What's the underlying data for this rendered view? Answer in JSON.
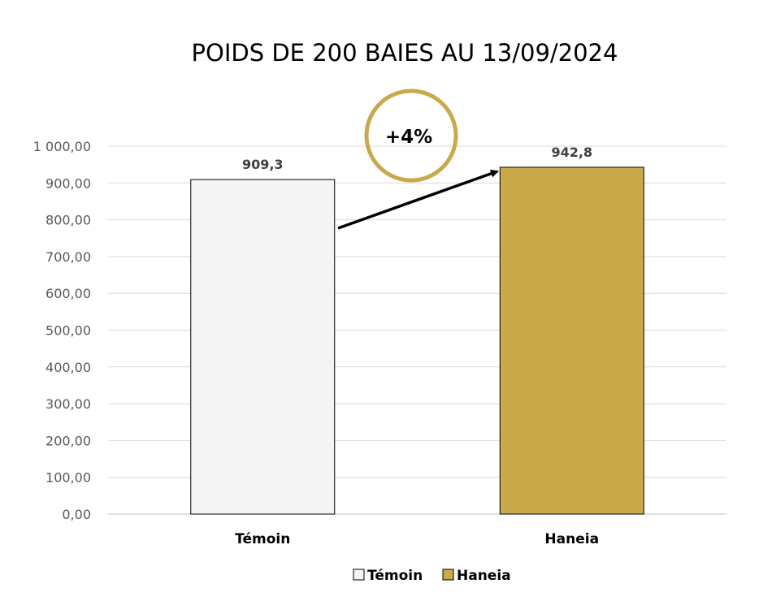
{
  "chart_data": {
    "type": "bar",
    "title": "POIDS DE 200 BAIES AU 13/09/2024",
    "categories": [
      "Témoin",
      "Haneia"
    ],
    "series": [
      {
        "name": "Témoin",
        "values": [
          909.3,
          null
        ],
        "color": "#f4f4f4"
      },
      {
        "name": "Haneia",
        "values": [
          null,
          942.8
        ],
        "color": "#c9a94a"
      }
    ],
    "data_labels": [
      "909,3",
      "942,8"
    ],
    "ylim": [
      0,
      1000
    ],
    "yticks": [
      0,
      100,
      200,
      300,
      400,
      500,
      600,
      700,
      800,
      900,
      1000
    ],
    "ytick_labels": [
      "0,00",
      "100,00",
      "200,00",
      "300,00",
      "400,00",
      "500,00",
      "600,00",
      "700,00",
      "800,00",
      "900,00",
      "1 000,00"
    ],
    "grid": true,
    "legend": "bottom",
    "annotation": {
      "text": "+4%",
      "from": "Témoin",
      "to": "Haneia"
    }
  },
  "colors": {
    "accent": "#c9a94a",
    "control": "#f4f4f4",
    "grid": "#d9d9d9"
  }
}
